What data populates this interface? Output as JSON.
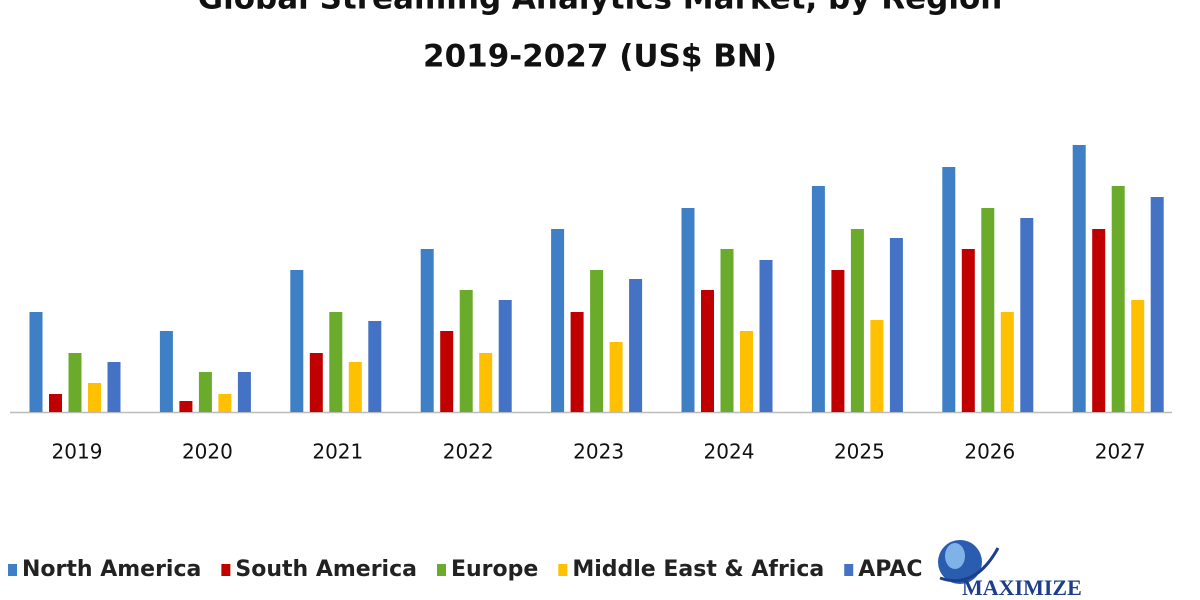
{
  "chart_data": {
    "type": "bar",
    "title": "Global Streaming Analytics Market, by Region",
    "subtitle": "2019-2027 (US$ BN)",
    "categories": [
      "2019",
      "2020",
      "2021",
      "2022",
      "2023",
      "2024",
      "2025",
      "2026",
      "2027"
    ],
    "series": [
      {
        "name": "North America",
        "color": "#3f7fc6",
        "values": [
          10.0,
          8.1,
          14.2,
          16.3,
          18.3,
          20.4,
          22.6,
          24.5,
          26.7
        ]
      },
      {
        "name": "South America",
        "color": "#c00000",
        "values": [
          1.8,
          1.1,
          5.9,
          8.1,
          10.0,
          12.2,
          14.2,
          16.3,
          18.3
        ]
      },
      {
        "name": "Europe",
        "color": "#6aab2b",
        "values": [
          5.9,
          4.0,
          10.0,
          12.2,
          14.2,
          16.3,
          18.3,
          20.4,
          22.6
        ]
      },
      {
        "name": "Middle East & Africa",
        "color": "#ffc000",
        "values": [
          2.9,
          1.8,
          5.0,
          5.9,
          7.0,
          8.1,
          9.2,
          10.0,
          11.2
        ]
      },
      {
        "name": "APAC",
        "color": "#4472c4",
        "values": [
          5.0,
          4.0,
          9.1,
          11.2,
          13.3,
          15.2,
          17.4,
          19.4,
          21.5
        ]
      }
    ]
  },
  "logo": "MAXIMIZE"
}
